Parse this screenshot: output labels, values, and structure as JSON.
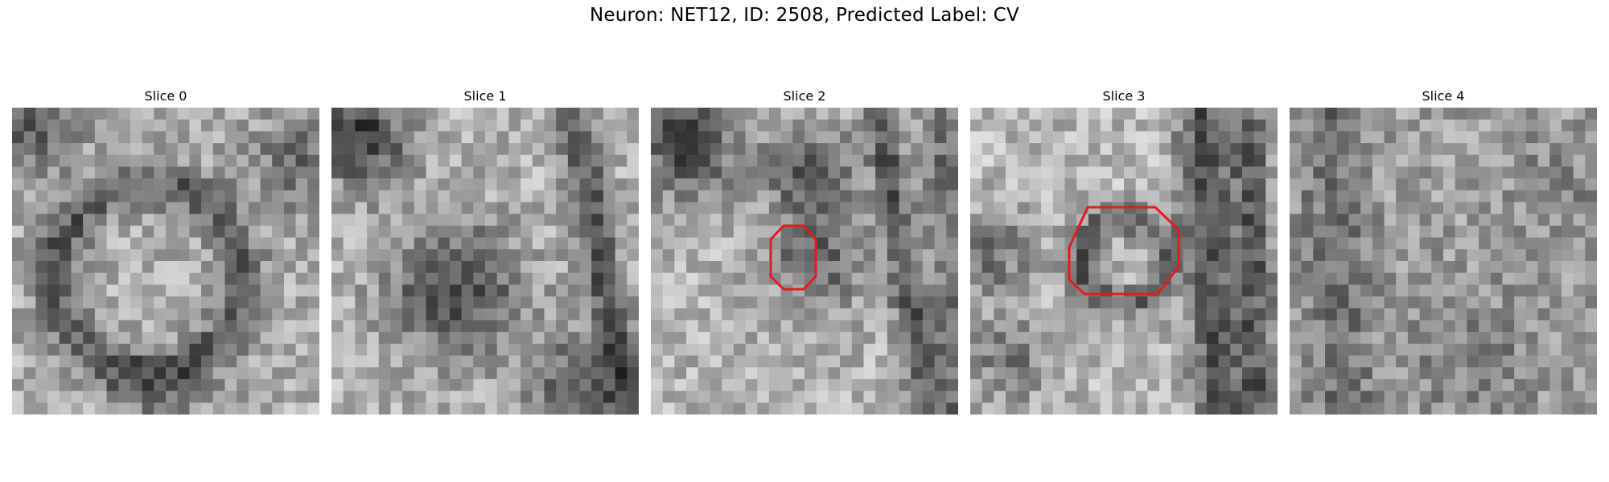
{
  "figure": {
    "title": "Neuron: NET12, ID: 2508, Predicted Label: CV"
  },
  "slices": [
    {
      "label": "Slice 0",
      "has_outline": false
    },
    {
      "label": "Slice 1",
      "has_outline": false
    },
    {
      "label": "Slice 2",
      "has_outline": true
    },
    {
      "label": "Slice 3",
      "has_outline": true
    },
    {
      "label": "Slice 4",
      "has_outline": false
    }
  ],
  "colors": {
    "outline": "#e41a1c",
    "colormap": "gray"
  }
}
